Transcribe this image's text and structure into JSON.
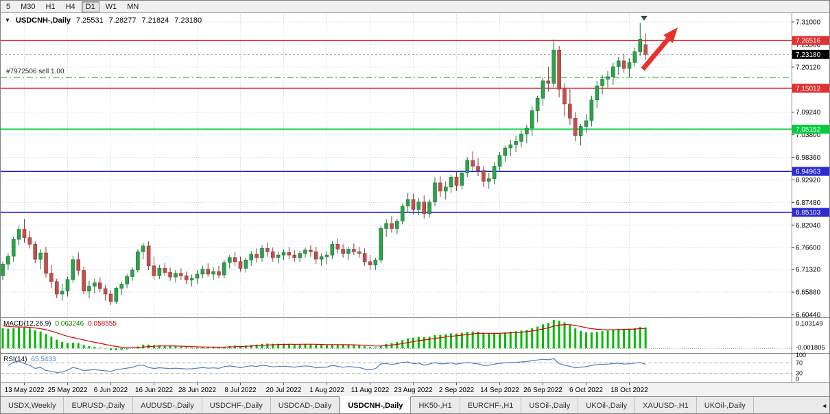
{
  "toolbar": {
    "timeframes": [
      "5",
      "M30",
      "H1",
      "H4",
      "D1",
      "W1",
      "MN"
    ],
    "active": "D1"
  },
  "chart": {
    "title": {
      "symbol": "USDCNH-,Daily",
      "open": "7.25531",
      "high": "7.28277",
      "low": "7.21824",
      "close": "7.23180"
    },
    "order": {
      "label": "#7972506 sell 1.00",
      "price": 7.1762
    },
    "levels": [
      {
        "price": 7.26516,
        "label": "7.26516",
        "color": "#e03131"
      },
      {
        "price": 7.15012,
        "label": "7.15012",
        "color": "#e03131"
      },
      {
        "price": 7.05152,
        "label": "7.05152",
        "color": "#00ce3c"
      },
      {
        "price": 6.94963,
        "label": "6.94963",
        "color": "#2b2bd0"
      },
      {
        "price": 6.85103,
        "label": "6.85103",
        "color": "#2b2bd0"
      }
    ],
    "current_price": {
      "value": 7.2318,
      "label": "7.23180",
      "label_bg": "#000000"
    },
    "y_axis_labels": [
      "7.31000",
      "7.25560",
      "7.20120",
      "7.09240",
      "7.03800",
      "6.98360",
      "6.92920",
      "6.87480",
      "6.82040",
      "6.76600",
      "6.71320",
      "6.65880",
      "6.60440"
    ],
    "indicators": {
      "macd": {
        "label": "MACD(12,26,9)",
        "value_main": "0.063246",
        "value_signal": "0.058555",
        "axis_max": "0.103149",
        "axis_min": "-0.001805",
        "params": [
          12,
          26,
          9
        ]
      },
      "rsi": {
        "label": "RSI(14)",
        "value": "65.5433",
        "axis": [
          "100",
          "70",
          "30",
          "0"
        ],
        "levels": [
          70,
          30
        ],
        "period": 14
      }
    }
  },
  "chart_data": {
    "type": "candlestick",
    "symbol": "USDCNH",
    "timeframe": "Daily",
    "y_range": [
      6.6044,
      7.31
    ],
    "x_tick_labels": [
      "13 May 2022",
      "25 May 2022",
      "6 Jun 2022",
      "16 Jun 2022",
      "28 Jun 2022",
      "8 Jul 2022",
      "20 Jul 2022",
      "1 Aug 2022",
      "11 Aug 2022",
      "23 Aug 2022",
      "2 Sep 2022",
      "14 Sep 2022",
      "26 Sep 2022",
      "6 Oct 2022",
      "18 Oct 2022"
    ],
    "x_tick_indices": [
      4,
      12,
      20,
      28,
      36,
      44,
      52,
      60,
      68,
      76,
      84,
      92,
      100,
      108,
      116
    ],
    "dates": [
      "05-09",
      "05-10",
      "05-11",
      "05-12",
      "05-13",
      "05-16",
      "05-17",
      "05-18",
      "05-19",
      "05-20",
      "05-23",
      "05-24",
      "05-25",
      "05-26",
      "05-27",
      "05-30",
      "05-31",
      "06-01",
      "06-02",
      "06-03",
      "06-06",
      "06-07",
      "06-08",
      "06-09",
      "06-10",
      "06-13",
      "06-14",
      "06-15",
      "06-16",
      "06-17",
      "06-20",
      "06-21",
      "06-22",
      "06-23",
      "06-24",
      "06-27",
      "06-28",
      "06-29",
      "06-30",
      "07-01",
      "07-04",
      "07-05",
      "07-06",
      "07-07",
      "07-08",
      "07-11",
      "07-12",
      "07-13",
      "07-14",
      "07-15",
      "07-18",
      "07-19",
      "07-20",
      "07-21",
      "07-22",
      "07-25",
      "07-26",
      "07-27",
      "07-28",
      "07-29",
      "08-01",
      "08-02",
      "08-03",
      "08-04",
      "08-05",
      "08-08",
      "08-09",
      "08-10",
      "08-11",
      "08-12",
      "08-15",
      "08-16",
      "08-17",
      "08-18",
      "08-19",
      "08-22",
      "08-23",
      "08-24",
      "08-25",
      "08-26",
      "08-29",
      "08-30",
      "08-31",
      "09-01",
      "09-02",
      "09-05",
      "09-06",
      "09-07",
      "09-08",
      "09-09",
      "09-12",
      "09-13",
      "09-14",
      "09-15",
      "09-16",
      "09-19",
      "09-20",
      "09-21",
      "09-22",
      "09-23",
      "09-26",
      "09-27",
      "09-28",
      "09-29",
      "09-30",
      "10-03",
      "10-04",
      "10-05",
      "10-06",
      "10-07",
      "10-10",
      "10-11",
      "10-12",
      "10-13",
      "10-14",
      "10-17",
      "10-18",
      "10-19",
      "10-20",
      "10-21"
    ],
    "ohlc": [
      [
        6.698,
        6.732,
        6.688,
        6.726
      ],
      [
        6.726,
        6.752,
        6.712,
        6.745
      ],
      [
        6.745,
        6.792,
        6.732,
        6.786
      ],
      [
        6.786,
        6.818,
        6.771,
        6.81
      ],
      [
        6.81,
        6.835,
        6.778,
        6.79
      ],
      [
        6.79,
        6.806,
        6.764,
        6.774
      ],
      [
        6.774,
        6.781,
        6.728,
        6.738
      ],
      [
        6.738,
        6.762,
        6.714,
        6.753
      ],
      [
        6.753,
        6.768,
        6.694,
        6.704
      ],
      [
        6.704,
        6.724,
        6.668,
        6.684
      ],
      [
        6.684,
        6.691,
        6.644,
        6.654
      ],
      [
        6.654,
        6.679,
        6.638,
        6.661
      ],
      [
        6.661,
        6.696,
        6.648,
        6.689
      ],
      [
        6.689,
        6.746,
        6.681,
        6.737
      ],
      [
        6.737,
        6.754,
        6.699,
        6.711
      ],
      [
        6.711,
        6.719,
        6.654,
        6.661
      ],
      [
        6.661,
        6.686,
        6.644,
        6.673
      ],
      [
        6.673,
        6.691,
        6.656,
        6.681
      ],
      [
        6.681,
        6.694,
        6.659,
        6.667
      ],
      [
        6.667,
        6.676,
        6.638,
        6.654
      ],
      [
        6.654,
        6.663,
        6.628,
        6.636
      ],
      [
        6.636,
        6.672,
        6.63,
        6.668
      ],
      [
        6.668,
        6.684,
        6.652,
        6.678
      ],
      [
        6.678,
        6.702,
        6.668,
        6.696
      ],
      [
        6.696,
        6.718,
        6.686,
        6.712
      ],
      [
        6.712,
        6.762,
        6.706,
        6.756
      ],
      [
        6.756,
        6.778,
        6.738,
        6.77
      ],
      [
        6.77,
        6.781,
        6.712,
        6.722
      ],
      [
        6.722,
        6.744,
        6.688,
        6.698
      ],
      [
        6.698,
        6.724,
        6.69,
        6.716
      ],
      [
        6.716,
        6.729,
        6.698,
        6.706
      ],
      [
        6.706,
        6.718,
        6.686,
        6.695
      ],
      [
        6.695,
        6.712,
        6.682,
        6.704
      ],
      [
        6.704,
        6.716,
        6.688,
        6.698
      ],
      [
        6.698,
        6.708,
        6.678,
        6.688
      ],
      [
        6.688,
        6.701,
        6.672,
        6.692
      ],
      [
        6.692,
        6.712,
        6.678,
        6.702
      ],
      [
        6.702,
        6.722,
        6.692,
        6.714
      ],
      [
        6.714,
        6.728,
        6.696,
        6.702
      ],
      [
        6.702,
        6.718,
        6.688,
        6.708
      ],
      [
        6.708,
        6.722,
        6.692,
        6.7
      ],
      [
        6.7,
        6.736,
        6.692,
        6.73
      ],
      [
        6.73,
        6.748,
        6.716,
        6.742
      ],
      [
        6.742,
        6.756,
        6.722,
        6.732
      ],
      [
        6.732,
        6.744,
        6.708,
        6.716
      ],
      [
        6.716,
        6.742,
        6.706,
        6.736
      ],
      [
        6.736,
        6.758,
        6.722,
        6.75
      ],
      [
        6.75,
        6.764,
        6.73,
        6.742
      ],
      [
        6.742,
        6.772,
        6.732,
        6.764
      ],
      [
        6.764,
        6.778,
        6.744,
        6.756
      ],
      [
        6.756,
        6.766,
        6.732,
        6.742
      ],
      [
        6.742,
        6.756,
        6.728,
        6.748
      ],
      [
        6.748,
        6.762,
        6.736,
        6.754
      ],
      [
        6.754,
        6.768,
        6.738,
        6.748
      ],
      [
        6.748,
        6.76,
        6.732,
        6.742
      ],
      [
        6.742,
        6.758,
        6.732,
        6.752
      ],
      [
        6.752,
        6.766,
        6.742,
        6.76
      ],
      [
        6.76,
        6.772,
        6.744,
        6.756
      ],
      [
        6.756,
        6.768,
        6.726,
        6.738
      ],
      [
        6.738,
        6.752,
        6.722,
        6.744
      ],
      [
        6.744,
        6.758,
        6.726,
        6.748
      ],
      [
        6.748,
        6.782,
        6.738,
        6.774
      ],
      [
        6.774,
        6.788,
        6.752,
        6.762
      ],
      [
        6.762,
        6.774,
        6.742,
        6.752
      ],
      [
        6.752,
        6.768,
        6.736,
        6.762
      ],
      [
        6.762,
        6.776,
        6.748,
        6.756
      ],
      [
        6.756,
        6.768,
        6.742,
        6.752
      ],
      [
        6.752,
        6.764,
        6.722,
        6.732
      ],
      [
        6.732,
        6.748,
        6.712,
        6.724
      ],
      [
        6.724,
        6.742,
        6.712,
        6.736
      ],
      [
        6.736,
        6.818,
        6.728,
        6.812
      ],
      [
        6.812,
        6.834,
        6.792,
        6.824
      ],
      [
        6.824,
        6.842,
        6.802,
        6.812
      ],
      [
        6.812,
        6.836,
        6.798,
        6.83
      ],
      [
        6.83,
        6.872,
        6.822,
        6.866
      ],
      [
        6.866,
        6.898,
        6.852,
        6.882
      ],
      [
        6.882,
        6.896,
        6.846,
        6.858
      ],
      [
        6.858,
        6.886,
        6.844,
        6.876
      ],
      [
        6.876,
        6.892,
        6.836,
        6.848
      ],
      [
        6.848,
        6.882,
        6.838,
        6.876
      ],
      [
        6.876,
        6.936,
        6.866,
        6.922
      ],
      [
        6.922,
        6.938,
        6.888,
        6.902
      ],
      [
        6.902,
        6.926,
        6.882,
        6.912
      ],
      [
        6.912,
        6.942,
        6.898,
        6.936
      ],
      [
        6.936,
        6.948,
        6.902,
        6.916
      ],
      [
        6.916,
        6.952,
        6.906,
        6.946
      ],
      [
        6.946,
        6.984,
        6.936,
        6.976
      ],
      [
        6.976,
        6.998,
        6.952,
        6.962
      ],
      [
        6.962,
        6.982,
        6.938,
        6.952
      ],
      [
        6.952,
        6.962,
        6.912,
        6.926
      ],
      [
        6.926,
        6.946,
        6.908,
        6.932
      ],
      [
        6.932,
        6.972,
        6.918,
        6.962
      ],
      [
        6.962,
        6.996,
        6.948,
        6.988
      ],
      [
        6.988,
        7.012,
        6.972,
        7.006
      ],
      [
        7.006,
        7.026,
        6.986,
        7.014
      ],
      [
        7.014,
        7.036,
        6.996,
        7.022
      ],
      [
        7.022,
        7.048,
        7.008,
        7.04
      ],
      [
        7.04,
        7.062,
        7.018,
        7.054
      ],
      [
        7.054,
        7.108,
        7.036,
        7.096
      ],
      [
        7.096,
        7.132,
        7.068,
        7.126
      ],
      [
        7.126,
        7.176,
        7.108,
        7.168
      ],
      [
        7.168,
        7.202,
        7.142,
        7.162
      ],
      [
        7.162,
        7.268,
        7.152,
        7.242
      ],
      [
        7.242,
        7.252,
        7.128,
        7.148
      ],
      [
        7.148,
        7.162,
        7.082,
        7.112
      ],
      [
        7.112,
        7.148,
        7.062,
        7.078
      ],
      [
        7.078,
        7.092,
        7.022,
        7.036
      ],
      [
        7.036,
        7.064,
        7.012,
        7.058
      ],
      [
        7.058,
        7.088,
        7.042,
        7.072
      ],
      [
        7.072,
        7.132,
        7.058,
        7.122
      ],
      [
        7.122,
        7.168,
        7.102,
        7.156
      ],
      [
        7.156,
        7.182,
        7.136,
        7.172
      ],
      [
        7.172,
        7.192,
        7.152,
        7.178
      ],
      [
        7.178,
        7.212,
        7.158,
        7.202
      ],
      [
        7.202,
        7.226,
        7.182,
        7.216
      ],
      [
        7.216,
        7.232,
        7.188,
        7.198
      ],
      [
        7.198,
        7.222,
        7.178,
        7.212
      ],
      [
        7.212,
        7.248,
        7.202,
        7.238
      ],
      [
        7.238,
        7.308,
        7.228,
        7.268
      ],
      [
        7.2553,
        7.2828,
        7.2182,
        7.2318
      ]
    ]
  },
  "colors": {
    "candle_up": "#2ca24c",
    "candle_up_stroke": "#1b7033",
    "candle_down": "#c0504d",
    "candle_down_stroke": "#8e3431",
    "macd_hist": "#00b800",
    "macd_signal": "#d40000",
    "rsi_line": "#4f81bd",
    "order_line": "#00a000",
    "grid": "#d8d8d8",
    "arrow": "#e8312a"
  },
  "tabs": {
    "items": [
      "USDX,Weekly",
      "EURUSD-,Daily",
      "AUDUSD-,Daily",
      "USDCHF-,Daily",
      "USDCAD-,Daily",
      "USDCNH-,Daily",
      "HK50-,H1",
      "EURCHF-,H1",
      "USOil-,Daily",
      "UKOil-,Daily",
      "XAUUSD-,H1",
      "UKOil-,Daily"
    ],
    "active_index": 5,
    "scroll_left_icon": "◄"
  }
}
